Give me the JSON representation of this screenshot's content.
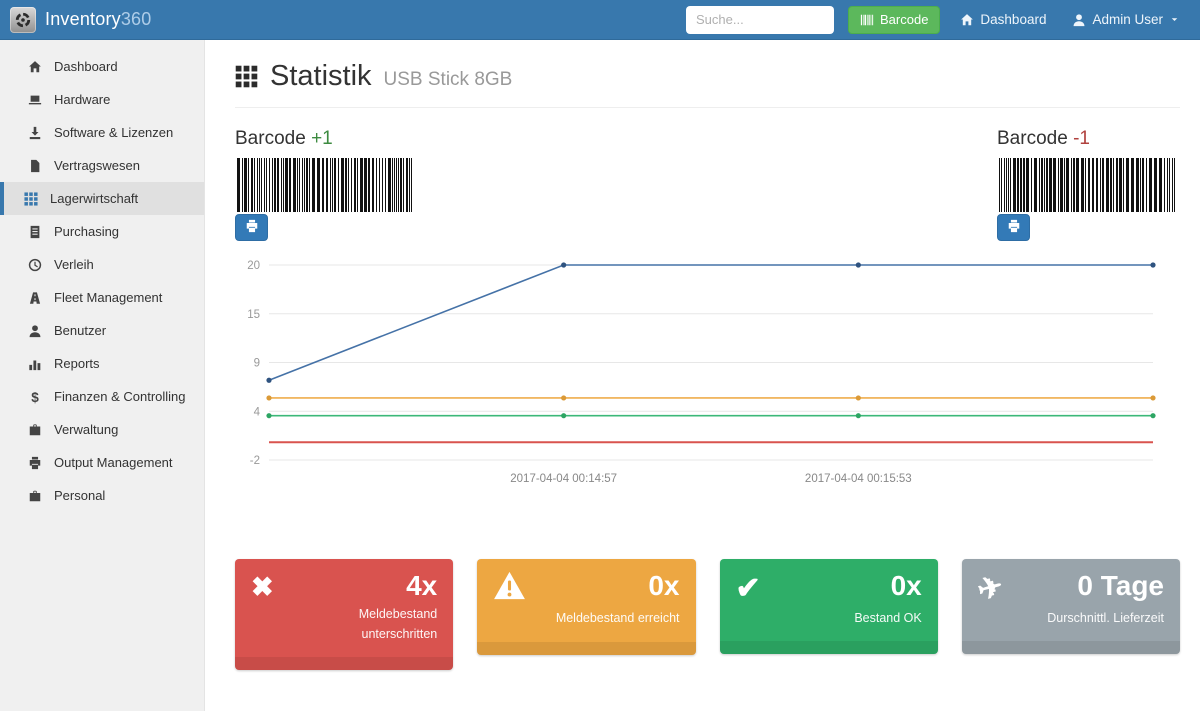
{
  "navbar": {
    "brand_name": "Inventory",
    "brand_suffix": "360",
    "search_placeholder": "Suche...",
    "barcode_button_label": "Barcode",
    "dashboard_label": "Dashboard",
    "user_label": "Admin User"
  },
  "sidebar": {
    "items": [
      {
        "label": "Dashboard",
        "icon": "home",
        "active": false
      },
      {
        "label": "Hardware",
        "icon": "laptop",
        "active": false
      },
      {
        "label": "Software & Lizenzen",
        "icon": "download",
        "active": false
      },
      {
        "label": "Vertragswesen",
        "icon": "file",
        "active": false
      },
      {
        "label": "Lagerwirtschaft",
        "icon": "grid",
        "active": true
      },
      {
        "label": "Purchasing",
        "icon": "list",
        "active": false
      },
      {
        "label": "Verleih",
        "icon": "clock",
        "active": false
      },
      {
        "label": "Fleet Management",
        "icon": "road",
        "active": false
      },
      {
        "label": "Benutzer",
        "icon": "user",
        "active": false
      },
      {
        "label": "Reports",
        "icon": "bar-chart",
        "active": false
      },
      {
        "label": "Finanzen & Controlling",
        "icon": "dollar",
        "active": false
      },
      {
        "label": "Verwaltung",
        "icon": "briefcase",
        "active": false
      },
      {
        "label": "Output Management",
        "icon": "printer",
        "active": false
      },
      {
        "label": "Personal",
        "icon": "suitcase",
        "active": false
      }
    ]
  },
  "main": {
    "title": "Statistik",
    "subtitle": "USB Stick 8GB",
    "barcodes": [
      {
        "label": "Barcode",
        "delta": "+1",
        "delta_color": "#3d8b40"
      },
      {
        "label": "Barcode",
        "delta": "-1",
        "delta_color": "#b0413e"
      }
    ]
  },
  "chart_data": {
    "type": "line",
    "title": "",
    "xlabel": "",
    "ylabel": "",
    "grid": true,
    "legend": "none",
    "ylim": [
      -2,
      20
    ],
    "y_ticks": [
      20,
      15,
      9,
      4,
      -2
    ],
    "x_points": 4,
    "x_tick_labels": [
      "",
      "2017-04-04 00:14:57",
      "2017-04-04 00:15:53",
      ""
    ],
    "series": [
      {
        "name": "line-blue",
        "color": "#4572a7",
        "marker_color": "#2f5380",
        "markers": true,
        "values": [
          7,
          20,
          20,
          20
        ]
      },
      {
        "name": "line-orange",
        "color": "#efad4d",
        "marker_color": "#db9a37",
        "markers": true,
        "values": [
          5,
          5,
          5,
          5
        ]
      },
      {
        "name": "line-green",
        "color": "#3cb878",
        "marker_color": "#2da563",
        "markers": true,
        "values": [
          3,
          3,
          3,
          3
        ]
      },
      {
        "name": "line-red",
        "color": "#d9534f",
        "marker_color": "#d9534f",
        "markers": false,
        "values": [
          0,
          0,
          0,
          0
        ]
      }
    ]
  },
  "cards": [
    {
      "icon": "x-icon",
      "value": "4x",
      "label": "Meldebestand unterschritten",
      "color": "#d9534f"
    },
    {
      "icon": "warning-icon",
      "value": "0x",
      "label": "Meldebestand erreicht",
      "color": "#eda742"
    },
    {
      "icon": "check-icon",
      "value": "0x",
      "label": "Bestand OK",
      "color": "#2eae68"
    },
    {
      "icon": "plane-icon",
      "value": "0 Tage",
      "label": "Durschnittl. Lieferzeit",
      "color": "#99a4ab"
    }
  ]
}
